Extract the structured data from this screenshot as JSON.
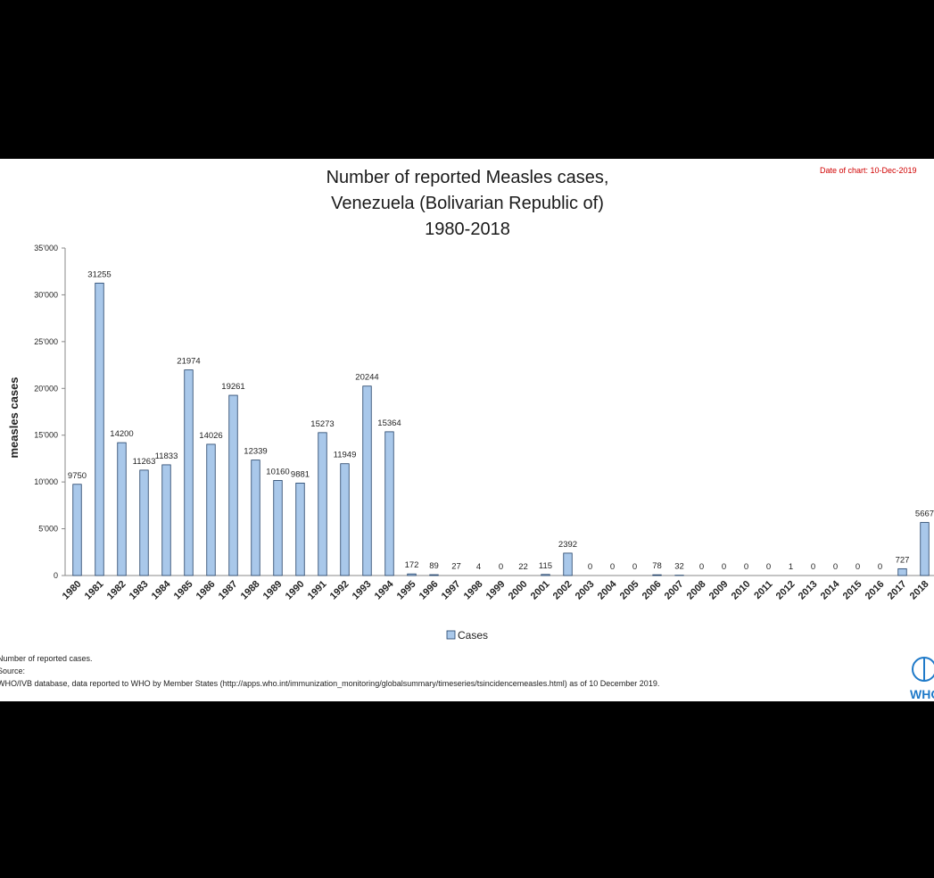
{
  "chart_data": {
    "type": "bar",
    "title_lines": [
      "Number of reported Measles cases,",
      "Venezuela (Bolivarian Republic of)",
      "1980-2018"
    ],
    "date_note": "Date of chart: 10-Dec-2019",
    "ylabel": "measles cases",
    "xlabel": "",
    "ylim": [
      0,
      35000
    ],
    "y_ticks": [
      0,
      5000,
      10000,
      15000,
      20000,
      25000,
      30000,
      35000
    ],
    "y_tick_labels": [
      "0",
      "5'000",
      "10'000",
      "15'000",
      "20'000",
      "25'000",
      "30'000",
      "35'000"
    ],
    "grid": false,
    "legend_position": "bottom",
    "bar_color": "#a9c8ea",
    "bar_stroke": "#1f3f66",
    "categories": [
      "1980",
      "1981",
      "1982",
      "1983",
      "1984",
      "1985",
      "1986",
      "1987",
      "1988",
      "1989",
      "1990",
      "1991",
      "1992",
      "1993",
      "1994",
      "1995",
      "1996",
      "1997",
      "1998",
      "1999",
      "2000",
      "2001",
      "2002",
      "2003",
      "2004",
      "2005",
      "2006",
      "2007",
      "2008",
      "2009",
      "2010",
      "2011",
      "2012",
      "2013",
      "2014",
      "2015",
      "2016",
      "2017",
      "2018"
    ],
    "series": [
      {
        "name": "Cases",
        "values": [
          9750,
          31255,
          14200,
          11263,
          11833,
          21974,
          14026,
          19261,
          12339,
          10160,
          9881,
          15273,
          11949,
          20244,
          15364,
          172,
          89,
          27,
          4,
          0,
          22,
          115,
          2392,
          0,
          0,
          0,
          78,
          32,
          0,
          0,
          0,
          0,
          1,
          0,
          0,
          0,
          0,
          727,
          5667
        ]
      }
    ]
  },
  "footnotes": [
    "Number of reported cases.",
    "Source:",
    "WHO/IVB database, data reported to WHO by Member States (http://apps.who.int/immunization_monitoring/globalsummary/timeseries/tsincidencemeasles.html) as of 10 December 2019."
  ],
  "logo": {
    "text": "WHO",
    "color": "#1f7ac9"
  }
}
